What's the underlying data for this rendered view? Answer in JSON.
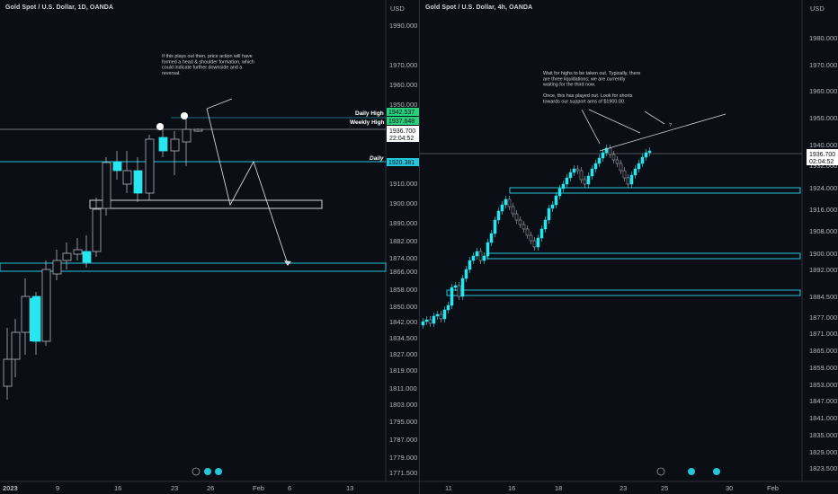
{
  "left": {
    "title": "Gold Spot / U.S. Dollar, 1D, OANDA",
    "currency": "USD",
    "price_ticks": [
      "1990.000",
      "1970.000",
      "1960.000",
      "1950.000",
      "1910.000",
      "1900.000",
      "1890.000",
      "1882.000",
      "1874.000",
      "1866.000",
      "1858.000",
      "1850.000",
      "1842.000",
      "1834.500",
      "1827.000",
      "1819.000",
      "1811.000",
      "1803.000",
      "1795.000",
      "1787.000",
      "1779.000"
    ],
    "current_price": "1936.700",
    "countdown": "22:04:52",
    "daily_high_label": "Daily High",
    "daily_high_value": "1942.537",
    "weekly_high_label": "Weekly High",
    "weekly_high_value": "1937.648",
    "daily_label": "Daily",
    "daily_value": "1920.381",
    "low_value": "1771.500",
    "time_ticks": [
      "2023",
      "9",
      "16",
      "23",
      "26",
      "Feb",
      "6",
      "13"
    ],
    "annotation": [
      "If this plays out then, price action will have",
      "formed a head & shoulder formation, which",
      "could indicate further downside and a",
      "reversal."
    ]
  },
  "right": {
    "title": "Gold Spot / U.S. Dollar, 4h, OANDA",
    "currency": "USD",
    "price_ticks": [
      "1980.000",
      "1970.000",
      "1960.000",
      "1950.000",
      "1940.000",
      "1932.000",
      "1924.000",
      "1916.000",
      "1908.000",
      "1900.000",
      "1892.000",
      "1884.500",
      "1877.000",
      "1871.000",
      "1865.000",
      "1859.000",
      "1853.000",
      "1847.000",
      "1841.000",
      "1835.000",
      "1829.000",
      "1823.500"
    ],
    "current_price": "1936.700",
    "countdown": "02:04:52",
    "time_ticks": [
      "11",
      "16",
      "18",
      "23",
      "25",
      "30",
      "Feb"
    ],
    "annotation": [
      "Wait for highs to be taken out. Typically, there",
      "are three liquidations; we are currently",
      "waiting for the third now.",
      "",
      "Once, this has played out. Look for shorts",
      "towards our support area of $1900.00."
    ],
    "question_mark": "?"
  },
  "colors": {
    "background": "#0c0e15",
    "teal": "#26c6da",
    "up_candle": "#0c0e15",
    "down_candle": "#26e7f0",
    "grid": "#1a1e28",
    "label_green": "#26d07c"
  },
  "icons": [
    "lightning-icon",
    "flag-icon",
    "flag-icon"
  ]
}
